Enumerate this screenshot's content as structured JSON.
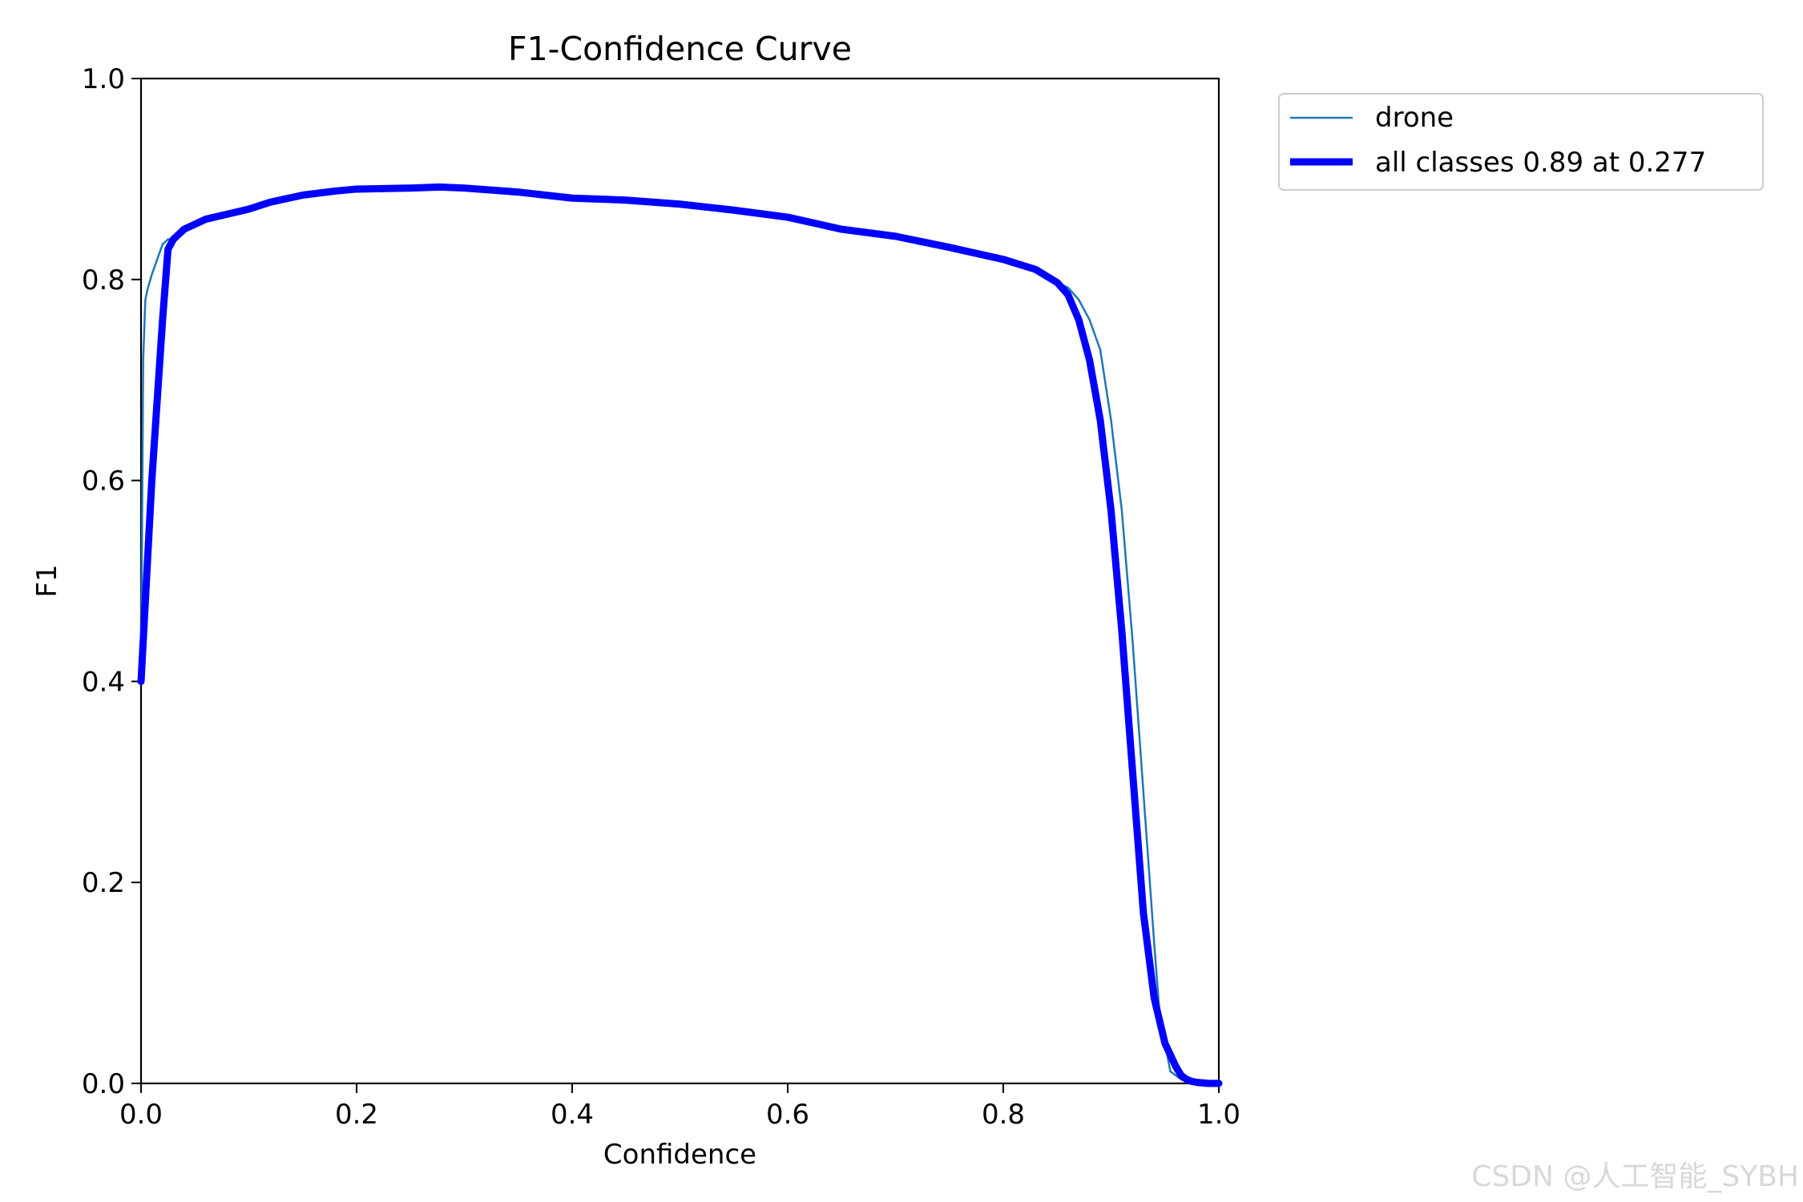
{
  "chart_data": {
    "type": "line",
    "title": "F1-Confidence Curve",
    "xlabel": "Confidence",
    "ylabel": "F1",
    "xlim": [
      0.0,
      1.0
    ],
    "ylim": [
      0.0,
      1.0
    ],
    "xticks": [
      0.0,
      0.2,
      0.4,
      0.6,
      0.8,
      1.0
    ],
    "xtick_labels": [
      "0.0",
      "0.2",
      "0.4",
      "0.6",
      "0.8",
      "1.0"
    ],
    "yticks": [
      0.0,
      0.2,
      0.4,
      0.6,
      0.8,
      1.0
    ],
    "ytick_labels": [
      "0.0",
      "0.2",
      "0.4",
      "0.6",
      "0.8",
      "1.0"
    ],
    "grid": false,
    "legend_position": "outside upper right",
    "series": [
      {
        "name": "drone",
        "color": "#1f77b4",
        "style": "thin",
        "x": [
          0.0,
          0.002,
          0.004,
          0.006,
          0.01,
          0.015,
          0.02,
          0.025,
          0.03,
          0.04,
          0.05,
          0.06,
          0.08,
          0.1,
          0.12,
          0.15,
          0.18,
          0.2,
          0.25,
          0.277,
          0.3,
          0.35,
          0.4,
          0.45,
          0.5,
          0.55,
          0.6,
          0.65,
          0.7,
          0.75,
          0.8,
          0.83,
          0.85,
          0.86,
          0.87,
          0.88,
          0.89,
          0.9,
          0.91,
          0.92,
          0.93,
          0.94,
          0.945,
          0.95,
          0.955,
          0.96,
          0.965,
          0.97,
          0.98,
          0.99,
          1.0
        ],
        "y": [
          0.4,
          0.72,
          0.78,
          0.79,
          0.805,
          0.82,
          0.835,
          0.84,
          0.84,
          0.848,
          0.855,
          0.86,
          0.865,
          0.87,
          0.877,
          0.884,
          0.888,
          0.89,
          0.891,
          0.892,
          0.891,
          0.887,
          0.881,
          0.878,
          0.875,
          0.869,
          0.862,
          0.85,
          0.843,
          0.832,
          0.82,
          0.81,
          0.797,
          0.792,
          0.78,
          0.76,
          0.73,
          0.66,
          0.57,
          0.44,
          0.29,
          0.14,
          0.07,
          0.04,
          0.012,
          0.008,
          0.004,
          0.002,
          0.001,
          0.0,
          0.0
        ]
      },
      {
        "name": "all classes 0.89 at 0.277",
        "color": "#0000ff",
        "style": "thick",
        "x": [
          0.0,
          0.01,
          0.02,
          0.025,
          0.03,
          0.04,
          0.05,
          0.06,
          0.08,
          0.1,
          0.12,
          0.15,
          0.18,
          0.2,
          0.25,
          0.277,
          0.3,
          0.35,
          0.4,
          0.45,
          0.5,
          0.55,
          0.6,
          0.65,
          0.7,
          0.75,
          0.8,
          0.83,
          0.85,
          0.86,
          0.87,
          0.88,
          0.89,
          0.9,
          0.91,
          0.92,
          0.93,
          0.94,
          0.95,
          0.96,
          0.965,
          0.97,
          0.975,
          0.98,
          0.99,
          1.0
        ],
        "y": [
          0.4,
          0.6,
          0.76,
          0.83,
          0.84,
          0.85,
          0.855,
          0.86,
          0.865,
          0.87,
          0.877,
          0.884,
          0.888,
          0.89,
          0.891,
          0.892,
          0.891,
          0.887,
          0.881,
          0.879,
          0.875,
          0.869,
          0.862,
          0.85,
          0.843,
          0.832,
          0.82,
          0.81,
          0.797,
          0.785,
          0.76,
          0.72,
          0.66,
          0.57,
          0.45,
          0.31,
          0.17,
          0.085,
          0.04,
          0.017,
          0.008,
          0.004,
          0.002,
          0.001,
          0.0,
          0.0
        ]
      }
    ]
  },
  "watermark": "CSDN @人工智能_SYBH"
}
